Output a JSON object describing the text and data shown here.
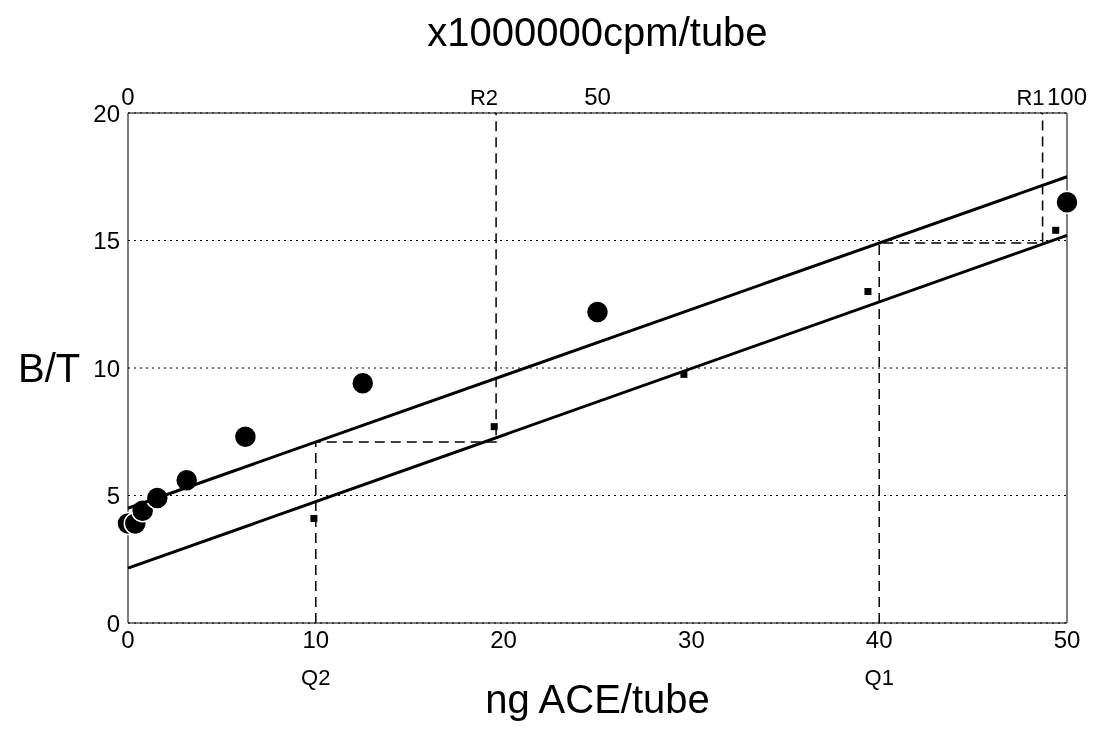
{
  "chart_data": {
    "type": "scatter",
    "xlabel": "ng ACE/tube",
    "x2label": "x1000000cpm/tube",
    "ylabel": "B/T",
    "xlim": [
      0,
      50
    ],
    "xticks": [
      0,
      10,
      20,
      30,
      40,
      50
    ],
    "x2lim": [
      0,
      100
    ],
    "x2ticks": [
      0,
      50,
      100
    ],
    "ylim": [
      0,
      20
    ],
    "yticks": [
      0,
      5,
      10,
      15,
      20
    ],
    "grid": "y",
    "line_style": "dotted",
    "series": [
      {
        "marker": "circle",
        "color": "#000000",
        "x": [
          0,
          0.39,
          0.78,
          1.56,
          3.125,
          6.25,
          12.5,
          25,
          50
        ],
        "values": [
          3.9,
          3.9,
          4.4,
          4.9,
          5.6,
          7.3,
          9.4,
          12.2,
          16.5
        ]
      },
      {
        "marker": "square",
        "axis": "x2",
        "color": "#000000",
        "x": [
          19.8,
          39,
          59.2,
          78.8,
          98.8
        ],
        "values": [
          4.1,
          7.7,
          9.75,
          13.0,
          15.4
        ]
      },
      {
        "type": "line",
        "marker": "none",
        "line_style": "solid",
        "color": "#000000",
        "x": [
          0,
          50
        ],
        "values": [
          4.5,
          17.5
        ]
      },
      {
        "type": "line",
        "marker": "none",
        "line_style": "solid",
        "color": "#000000",
        "x": [
          0,
          50
        ],
        "values": [
          2.15,
          15.2
        ]
      },
      {
        "type": "line",
        "marker": "none",
        "line_style": "dashed",
        "color": "#000000",
        "x": [
          10,
          10,
          19.6,
          19.6
        ],
        "values": [
          0,
          7.1,
          7.1,
          20
        ]
      },
      {
        "type": "line",
        "marker": "none",
        "line_style": "dashed",
        "color": "#000000",
        "x": [
          40,
          40,
          48.7,
          48.7
        ],
        "values": [
          0,
          14.9,
          14.9,
          20
        ]
      }
    ],
    "annotations": [
      {
        "text": "Q2",
        "x": 10,
        "y": 0
      },
      {
        "text": "Q1",
        "x": 40,
        "y": 0
      },
      {
        "text": "R2",
        "x": 19.6,
        "y": 20
      },
      {
        "text": "R1",
        "x": 48.7,
        "y": 20
      }
    ]
  }
}
